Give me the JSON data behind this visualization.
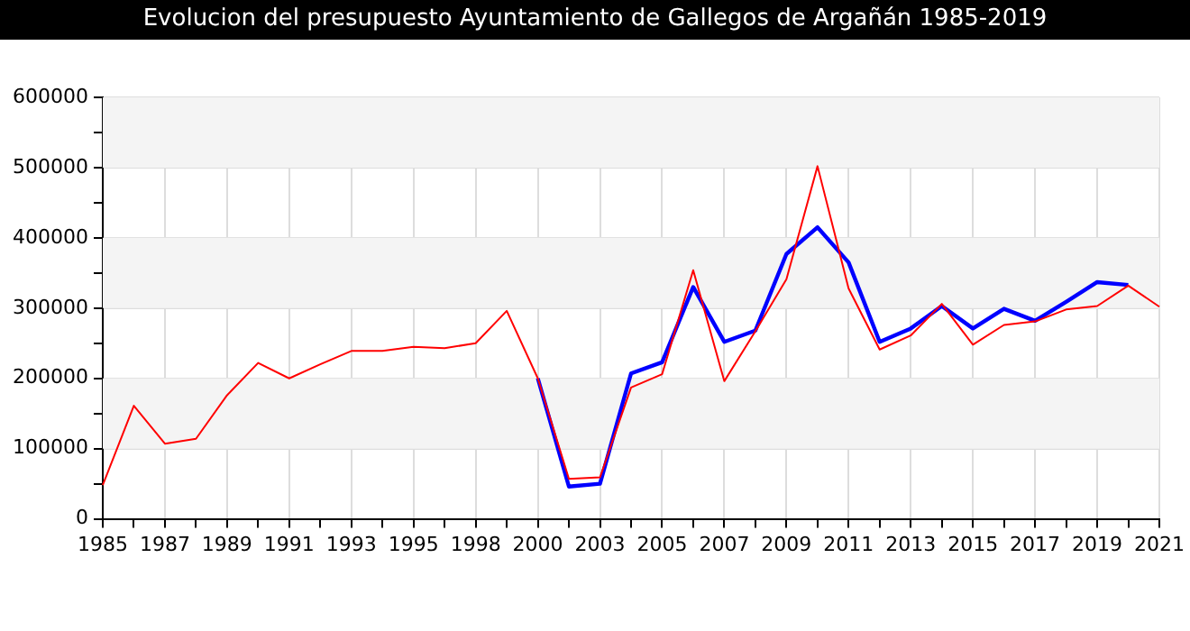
{
  "chart_data": {
    "type": "line",
    "title": "Evolucion del presupuesto Ayuntamiento de Gallegos de Argañán 1985-2019",
    "categories": [
      "1985",
      null,
      "1987",
      null,
      "1989",
      null,
      "1991",
      null,
      "1993",
      null,
      "1995",
      null,
      "1998",
      null,
      "2000",
      null,
      "2003",
      null,
      "2005",
      null,
      "2007",
      null,
      "2009",
      null,
      "2011",
      null,
      "2013",
      null,
      "2015",
      null,
      "2017",
      null,
      "2019",
      null,
      "2021"
    ],
    "series": [
      {
        "color": "#0000ff",
        "values": [
          null,
          null,
          null,
          null,
          null,
          null,
          null,
          null,
          null,
          null,
          null,
          null,
          null,
          null,
          200000,
          46000,
          50000,
          207000,
          223000,
          330000,
          252000,
          268000,
          377000,
          415000,
          365000,
          252000,
          271000,
          303000,
          271000,
          299000,
          282000,
          309000,
          337000,
          333000,
          null
        ]
      },
      {
        "color": "#ff0000",
        "values": [
          48000,
          161000,
          107000,
          114000,
          176000,
          222000,
          200000,
          220000,
          239000,
          239000,
          245000,
          243000,
          250000,
          296000,
          200000,
          57000,
          59000,
          187000,
          206000,
          354000,
          196000,
          267000,
          341000,
          502000,
          328000,
          241000,
          261000,
          306000,
          248000,
          276000,
          281000,
          298000,
          303000,
          332000,
          302000
        ]
      }
    ],
    "ylim": [
      0,
      600000
    ],
    "yticks": [
      0,
      {
        "value": 50000,
        "label": null
      },
      100000,
      {
        "value": 150000,
        "label": null
      },
      200000,
      {
        "value": 250000,
        "label": null
      },
      300000,
      {
        "value": 350000,
        "label": null
      },
      400000,
      {
        "value": 450000,
        "label": null
      },
      500000,
      {
        "value": 550000,
        "label": null
      },
      600000
    ],
    "bands": [
      {
        "axis": "y",
        "from": 100000,
        "to": 200000,
        "color": "#f4f4f4"
      },
      {
        "axis": "y",
        "from": 300000,
        "to": 400000,
        "color": "#f4f4f4"
      },
      {
        "axis": "y",
        "from": 500000,
        "to": 600000,
        "color": "#f4f4f4"
      }
    ],
    "grid": true,
    "legend": false,
    "marker": "none",
    "line_style": "solid"
  }
}
